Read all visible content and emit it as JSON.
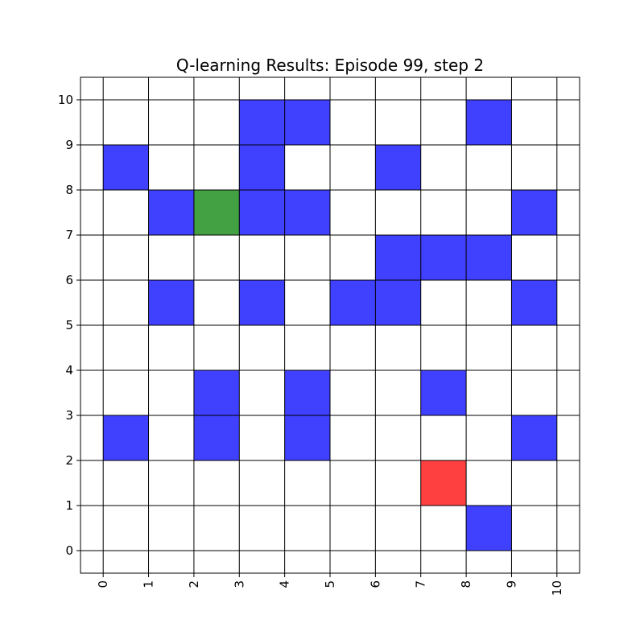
{
  "chart_data": {
    "type": "heatmap",
    "title": "Q-learning Results: Episode 99, step 2",
    "xlabel": "",
    "ylabel": "",
    "xlim": [
      -0.5,
      10.5
    ],
    "ylim": [
      -0.5,
      10.5
    ],
    "x_ticks": [
      "0",
      "1",
      "2",
      "3",
      "4",
      "5",
      "6",
      "7",
      "8",
      "9",
      "10"
    ],
    "y_ticks": [
      "0",
      "1",
      "2",
      "3",
      "4",
      "5",
      "6",
      "7",
      "8",
      "9",
      "10"
    ],
    "grid": true,
    "colors": {
      "obstacle": "#4040ff",
      "agent": "#43a043",
      "goal": "#ff4040",
      "grid": "#000000"
    },
    "cells": [
      {
        "x": 3,
        "y": 9,
        "kind": "obstacle"
      },
      {
        "x": 4,
        "y": 9,
        "kind": "obstacle"
      },
      {
        "x": 8,
        "y": 9,
        "kind": "obstacle"
      },
      {
        "x": 0,
        "y": 8,
        "kind": "obstacle"
      },
      {
        "x": 3,
        "y": 8,
        "kind": "obstacle"
      },
      {
        "x": 6,
        "y": 8,
        "kind": "obstacle"
      },
      {
        "x": 1,
        "y": 7,
        "kind": "obstacle"
      },
      {
        "x": 2,
        "y": 7,
        "kind": "agent"
      },
      {
        "x": 3,
        "y": 7,
        "kind": "obstacle"
      },
      {
        "x": 4,
        "y": 7,
        "kind": "obstacle"
      },
      {
        "x": 9,
        "y": 7,
        "kind": "obstacle"
      },
      {
        "x": 6,
        "y": 6,
        "kind": "obstacle"
      },
      {
        "x": 7,
        "y": 6,
        "kind": "obstacle"
      },
      {
        "x": 8,
        "y": 6,
        "kind": "obstacle"
      },
      {
        "x": 1,
        "y": 5,
        "kind": "obstacle"
      },
      {
        "x": 3,
        "y": 5,
        "kind": "obstacle"
      },
      {
        "x": 5,
        "y": 5,
        "kind": "obstacle"
      },
      {
        "x": 6,
        "y": 5,
        "kind": "obstacle"
      },
      {
        "x": 9,
        "y": 5,
        "kind": "obstacle"
      },
      {
        "x": 2,
        "y": 3,
        "kind": "obstacle"
      },
      {
        "x": 4,
        "y": 3,
        "kind": "obstacle"
      },
      {
        "x": 7,
        "y": 3,
        "kind": "obstacle"
      },
      {
        "x": 0,
        "y": 2,
        "kind": "obstacle"
      },
      {
        "x": 2,
        "y": 2,
        "kind": "obstacle"
      },
      {
        "x": 4,
        "y": 2,
        "kind": "obstacle"
      },
      {
        "x": 9,
        "y": 2,
        "kind": "obstacle"
      },
      {
        "x": 7,
        "y": 1,
        "kind": "goal"
      },
      {
        "x": 8,
        "y": 0,
        "kind": "obstacle"
      }
    ]
  }
}
